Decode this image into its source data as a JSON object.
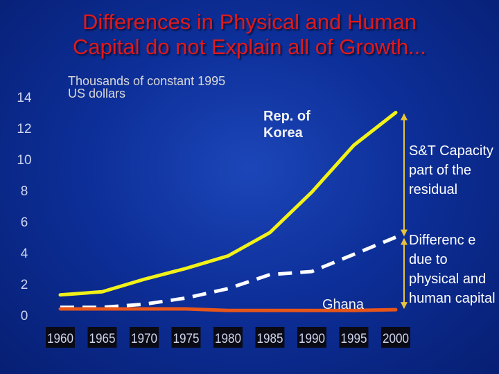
{
  "title": {
    "line1": "Differences in Physical and Human",
    "line2": "Capital do not Explain all of Growth..."
  },
  "unit_label": "Thousands of constant 1995 US dollars",
  "annotations": {
    "korea": "Rep. of Korea",
    "ghana": "Ghana",
    "st_capacity": "S&T Capacity part of the residual",
    "difference": "Differenc e due to physical and human capital"
  },
  "colors": {
    "korea": "#f2f219",
    "dashed": "#ffffff",
    "ghana": "#e8561a",
    "arrow": "#e8c43a",
    "axis_text": "#cfd6ef",
    "tick_box": "#0a0a14"
  },
  "chart_data": {
    "type": "line",
    "x": [
      1960,
      1965,
      1970,
      1975,
      1980,
      1985,
      1990,
      1995,
      2000
    ],
    "categories": [
      "1960",
      "1965",
      "1970",
      "1975",
      "1980",
      "1985",
      "1990",
      "1995",
      "2000"
    ],
    "yticks": [
      "0",
      "2",
      "4",
      "6",
      "8",
      "10",
      "12",
      "14"
    ],
    "ylim": [
      0,
      14
    ],
    "series": [
      {
        "key": "korea",
        "values": [
          1.3,
          1.5,
          2.3,
          3.0,
          3.8,
          5.3,
          7.9,
          10.9,
          13.0
        ]
      },
      {
        "key": "dashed",
        "values": [
          0.5,
          0.5,
          0.7,
          1.1,
          1.7,
          2.6,
          2.8,
          3.9,
          5.0
        ]
      },
      {
        "key": "ghana",
        "values": [
          0.4,
          0.4,
          0.4,
          0.4,
          0.3,
          0.3,
          0.3,
          0.3,
          0.35
        ]
      }
    ]
  }
}
